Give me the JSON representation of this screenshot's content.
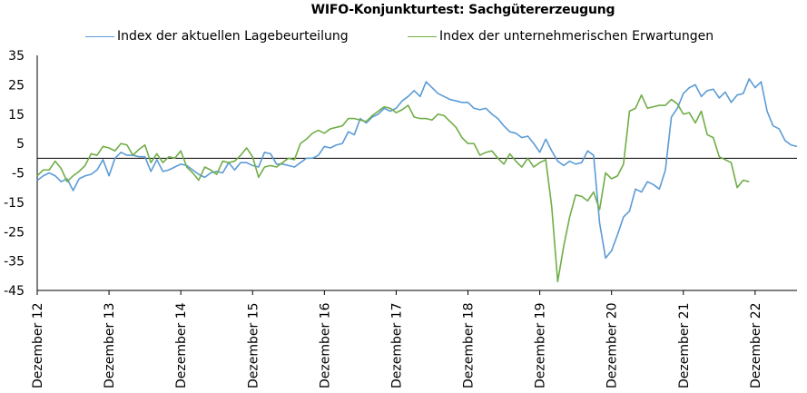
{
  "chart_data": {
    "type": "line",
    "title": "WIFO-Konjunkturtest: Sachgütererzeugung",
    "xlabel": "",
    "ylabel": "",
    "ylim": [
      -45,
      35
    ],
    "yticks": [
      35,
      25,
      15,
      5,
      -5,
      -15,
      -25,
      -35,
      -45
    ],
    "x_tick_labels": [
      "Dezember 12",
      "Dezember 13",
      "Dezember 14",
      "Dezember 15",
      "Dezember 16",
      "Dezember 17",
      "Dezember 18",
      "Dezember 19",
      "Dezember 20",
      "Dezember 21",
      "Dezember 22"
    ],
    "x_start": "2012-12",
    "x_end": "2022-12",
    "grid": false,
    "legend_position": "top",
    "series": [
      {
        "name": "Index der aktuellen Lagebeurteilung",
        "color": "#5b9bd5",
        "values": [
          -7.6,
          -6,
          -5,
          -6,
          -8,
          -7,
          -11,
          -7,
          -6,
          -5.5,
          -4,
          -0.5,
          -6,
          0,
          2,
          1,
          1,
          0.5,
          0.5,
          -4.5,
          -0.5,
          -4.5,
          -4,
          -3,
          -2,
          -2.5,
          -4,
          -5.5,
          -6.5,
          -5,
          -4.5,
          -5,
          -1.5,
          -4,
          -1.5,
          -1.5,
          -2.5,
          -3,
          2,
          1.5,
          -2,
          -2,
          -2.5,
          -3,
          -1.5,
          0,
          0,
          1,
          4,
          3.5,
          4.5,
          5,
          9,
          8,
          13.5,
          12,
          14,
          15,
          17,
          16,
          17,
          19.5,
          21,
          23,
          21,
          26,
          24,
          22,
          21,
          20,
          19.5,
          19,
          19,
          17,
          16.5,
          17,
          15,
          13.5,
          11,
          9,
          8.5,
          7,
          7.5,
          5,
          2,
          6.5,
          2.5,
          -1,
          -2.5,
          -1,
          -2,
          -1.5,
          2.5,
          1,
          -22,
          -34,
          -31.5,
          -26,
          -20,
          -18,
          -10.5,
          -11.5,
          -8,
          -9,
          -10.5,
          -4,
          14,
          17,
          22,
          24,
          25,
          21,
          23,
          23.5,
          20.5,
          22.5,
          19,
          21.5,
          22,
          27,
          24,
          26,
          16,
          11,
          10,
          6,
          4.5,
          4
        ]
      },
      {
        "name": "Index der unternehmerischen Erwartungen",
        "color": "#70ad47",
        "values": [
          -6,
          -4,
          -4,
          -1,
          -3.5,
          -8,
          -6,
          -4.5,
          -2.5,
          1.5,
          1,
          4,
          3.5,
          2.5,
          5,
          4.5,
          1,
          3,
          4.5,
          -1.5,
          1.5,
          -1.5,
          0.5,
          0,
          2.5,
          -3,
          -5,
          -7.5,
          -3,
          -4,
          -5.5,
          -1,
          -1.5,
          -1,
          1,
          3.5,
          0.5,
          -6.5,
          -3,
          -2.5,
          -3,
          -1.5,
          0,
          -0.5,
          5,
          6.5,
          8.5,
          9.5,
          8.5,
          10,
          10.5,
          11,
          13.5,
          13.5,
          13,
          12.5,
          14.5,
          16,
          17.5,
          17,
          15.5,
          16.5,
          18,
          14,
          13.5,
          13.5,
          13,
          15,
          14.5,
          12.5,
          10.5,
          7,
          5,
          5,
          1,
          2,
          2.5,
          0,
          -2,
          1.5,
          -1,
          -3,
          0,
          -3,
          -1.5,
          -0.5,
          -16.5,
          -42,
          -30,
          -20,
          -12.5,
          -13,
          -14.5,
          -11.5,
          -17.5,
          -5,
          -7,
          -6,
          -2,
          16,
          17,
          21.5,
          17,
          17.5,
          18,
          18,
          20,
          18.5,
          15,
          15.5,
          12,
          16,
          8,
          7,
          0.5,
          -0.5,
          -1.5,
          -10,
          -7.5,
          -8
        ]
      }
    ]
  }
}
